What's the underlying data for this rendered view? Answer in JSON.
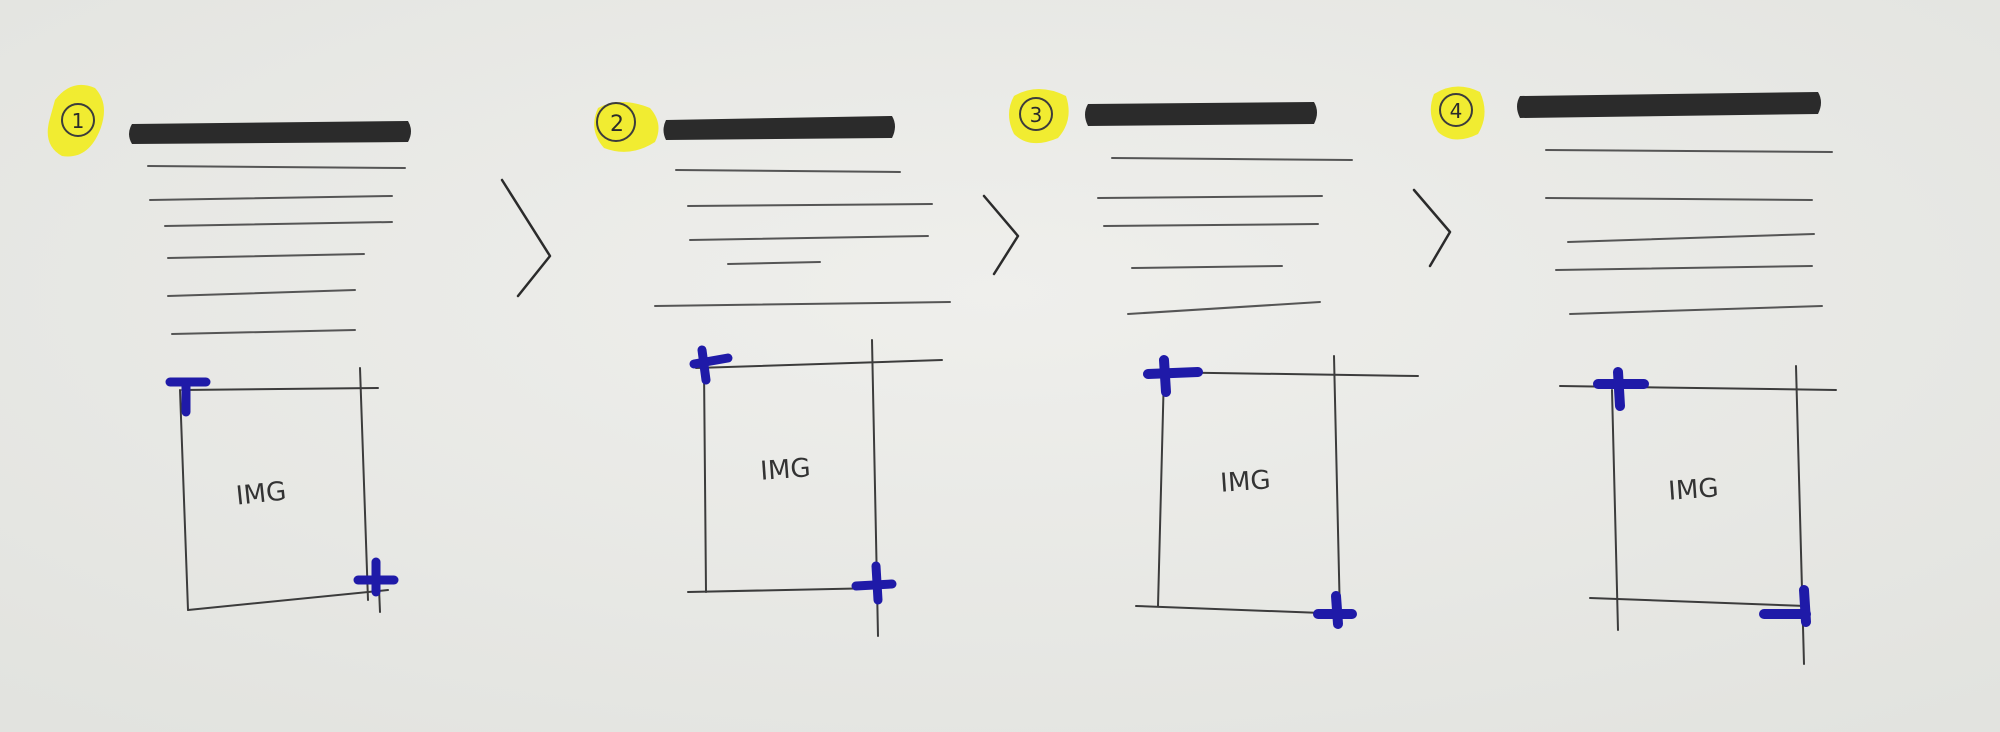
{
  "colors": {
    "paper": "#ecece9",
    "pencil": "#3c3c3c",
    "marker_black": "#2b2b2b",
    "marker_blue": "#1f1aa8",
    "highlight": "#f2ec1d"
  },
  "steps": [
    {
      "number": "1",
      "image_label": "IMG"
    },
    {
      "number": "2",
      "image_label": "IMG"
    },
    {
      "number": "3",
      "image_label": "IMG"
    },
    {
      "number": "4",
      "image_label": "IMG"
    }
  ],
  "connector_icon": "chevron-right-icon"
}
